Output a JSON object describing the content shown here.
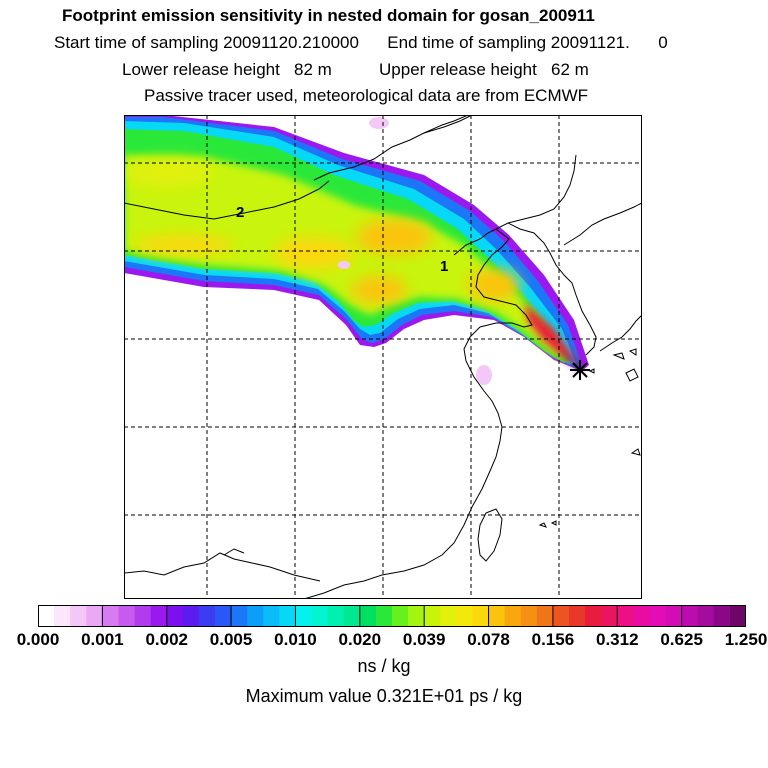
{
  "header": {
    "title": "Footprint emission sensitivity in nested domain for gosan_200911",
    "sampling_line": "Start time of sampling 20091120.210000      End time of sampling 20091121.      0",
    "release_line": "Lower release height   82 m          Upper release height   62 m",
    "tracer_line": "Passive tracer used, meteorological data are from ECMWF"
  },
  "map": {
    "trajectory_labels": [
      "1",
      "2"
    ],
    "receptor_marker": "receptor-star-icon"
  },
  "colorbar": {
    "ticks": [
      "0.000",
      "0.001",
      "0.002",
      "0.005",
      "0.010",
      "0.020",
      "0.039",
      "0.078",
      "0.156",
      "0.312",
      "0.625",
      "1.250"
    ],
    "colors": [
      "#ffffff",
      "#fbe6fb",
      "#f3c8f6",
      "#eaa9f3",
      "#d67cf0",
      "#c75bef",
      "#b33bee",
      "#9b19ee",
      "#7d10ee",
      "#5c1cf0",
      "#3c3cf3",
      "#2a57f5",
      "#1b77f7",
      "#0c9ef8",
      "#0abdf8",
      "#07d8f5",
      "#04f1ee",
      "#02f5d0",
      "#00f0b0",
      "#00e890",
      "#00e060",
      "#2ae83a",
      "#66f01e",
      "#a4f412",
      "#c8f40c",
      "#e2f00a",
      "#f2e80a",
      "#fbd80c",
      "#fbc40c",
      "#f8a80e",
      "#f59014",
      "#f07418",
      "#ec5420",
      "#e83828",
      "#e81c3c",
      "#ea1460",
      "#ec1084",
      "#ea0ca0",
      "#e40cb4",
      "#d40cb8",
      "#bc0cb0",
      "#a40ca0",
      "#8a0888",
      "#6e0668"
    ],
    "units": "ns / kg"
  },
  "footer": {
    "max_value": "Maximum value  0.321E+01 ps / kg"
  }
}
